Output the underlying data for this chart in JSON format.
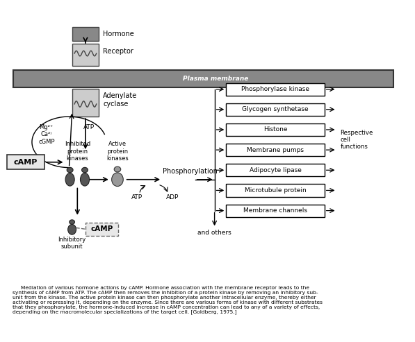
{
  "fig_width": 5.97,
  "fig_height": 4.93,
  "dpi": 100,
  "bg_color": "#ffffff",
  "caption_text": "     Mediation of various hormone actions by cAMP. Hormone association with the membrane receptor leads to the\nsynthesis of cAMP from ATP. The cAMP then removes the inhibition of a protein kinase by removing an inhibitory sub-\nunit from the kinase. The active protein kinase can then phosphorylate another intracellular enzyme, thereby either\nactivating or repressing it, depending on the enzyme. Since there are various forms of kinase with different substrates\nthat they phosphorylate, the hormone-induced increase in cAMP concentration can lead to any of a variety of effects,\ndepending on the macromolecular specializations of the target cell. [Goldberg, 1975.]",
  "right_boxes": [
    "Phosphorylase kinase",
    "Glycogen synthetase",
    "Histone",
    "Membrane pumps",
    "Adipocyte lipase",
    "Microtubule protein",
    "Membrane channels"
  ],
  "labels": {
    "hormone": "Hormone",
    "receptor": "Receptor",
    "plasma_membrane": "Plasma membrane",
    "adenylate_cyclase": "Adenylate\ncyclase",
    "mg": "Mg²⁺\nCa²⁾\ncGMP",
    "atp_left": "ATP",
    "camp": "cAMP",
    "inhibited_protein_kinases": "Inhibited\nprotein\nkinases",
    "active_protein_kinases": "Active\nprotein\nkinases",
    "phosphorylation": "Phosphorylation",
    "atp_right": "ATP",
    "adp": "ADP",
    "inhibitory_subunit": "Inhibitory\nsubunit",
    "camp2": "cAMP",
    "and_others": "and others",
    "respective_cell_functions": "Respective\ncell\nfunctions"
  }
}
